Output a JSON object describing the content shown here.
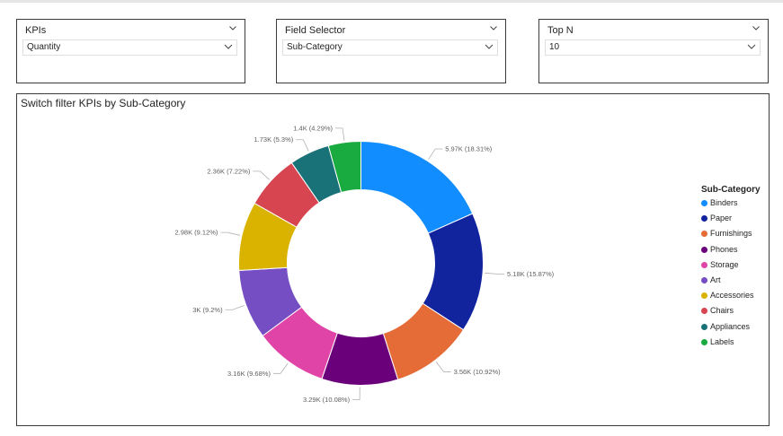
{
  "slicers": {
    "kpis": {
      "title": "KPIs",
      "value": "Quantity"
    },
    "field_selector": {
      "title": "Field Selector",
      "value": "Sub-Category"
    },
    "top_n": {
      "title": "Top N",
      "value": "10"
    }
  },
  "visual": {
    "title": "Switch filter KPIs by Sub-Category"
  },
  "legend": {
    "title": "Sub-Category"
  },
  "chart_data": {
    "type": "pie",
    "title": "Switch filter KPIs by Sub-Category",
    "legend_position": "right",
    "donut": true,
    "legend_title": "Sub-Category",
    "categories": [
      "Binders",
      "Paper",
      "Furnishings",
      "Phones",
      "Storage",
      "Art",
      "Accessories",
      "Chairs",
      "Appliances",
      "Labels"
    ],
    "values": [
      5970,
      5180,
      3560,
      3290,
      3160,
      3000,
      2980,
      2360,
      1730,
      1400
    ],
    "percents": [
      18.31,
      15.87,
      10.92,
      10.08,
      9.68,
      9.2,
      9.12,
      7.22,
      5.3,
      4.29
    ],
    "labels": [
      "5.97K (18.31%)",
      "5.18K (15.87%)",
      "3.56K (10.92%)",
      "3.29K (10.08%)",
      "3.16K (9.68%)",
      "3K (9.2%)",
      "2.98K (9.12%)",
      "2.36K (7.22%)",
      "1.73K (5.3%)",
      "1.4K (4.29%)"
    ],
    "colors": [
      "#118DFF",
      "#12239E",
      "#E66C37",
      "#6B007B",
      "#E044A7",
      "#744EC2",
      "#D9B300",
      "#D64550",
      "#197278",
      "#1AAB40"
    ]
  }
}
